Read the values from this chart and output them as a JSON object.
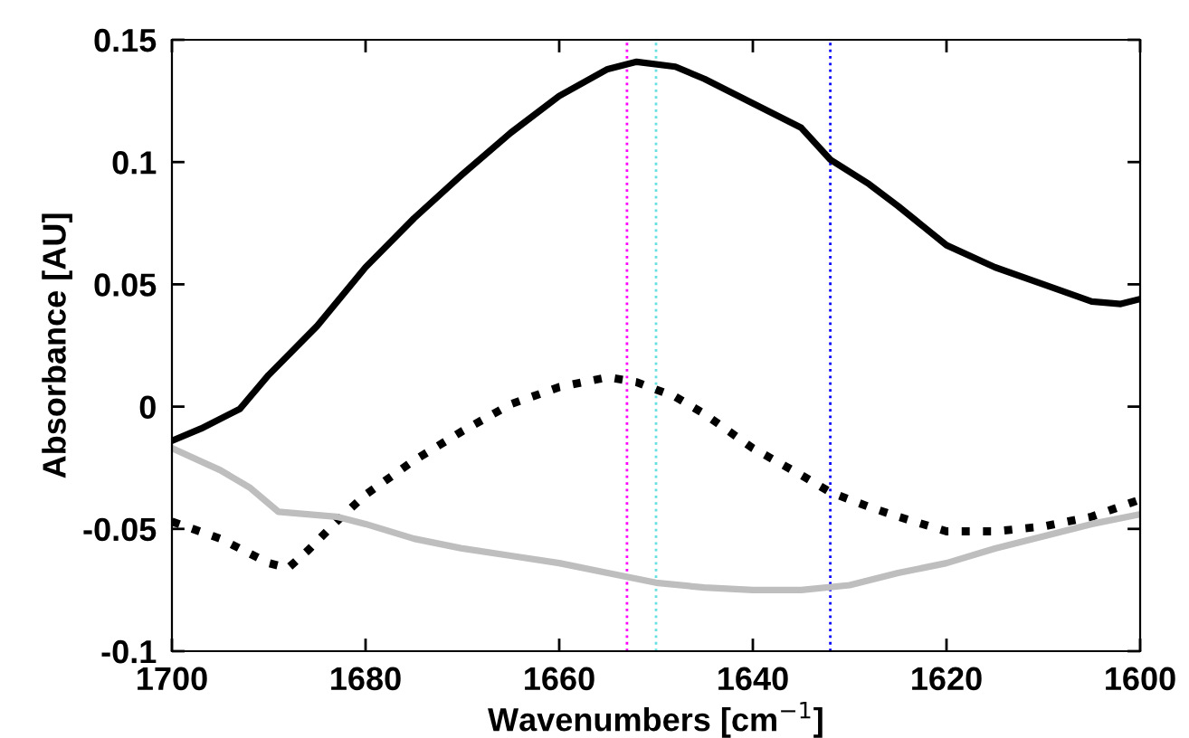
{
  "chart_data": {
    "type": "line",
    "xlabel": "Wavenumbers [cm$^{−1}$]",
    "ylabel": "Absorbance [AU]",
    "xlim": [
      1700,
      1600
    ],
    "xticks": [
      1700,
      1680,
      1660,
      1640,
      1620,
      1600
    ],
    "ylim": [
      -0.1,
      0.15
    ],
    "yticks": [
      -0.1,
      -0.05,
      0,
      0.05,
      0.1,
      0.15
    ],
    "grid": false,
    "marker": "none",
    "series": [
      {
        "color": "#000000",
        "line_style": "solid",
        "x": [
          1700,
          1697,
          1693,
          1690,
          1685,
          1680,
          1675,
          1670,
          1665,
          1660,
          1655,
          1652,
          1648,
          1645,
          1640,
          1635,
          1632,
          1628,
          1625,
          1620,
          1615,
          1610,
          1605,
          1602,
          1600
        ],
        "values": [
          -0.014,
          -0.009,
          -0.001,
          0.013,
          0.033,
          0.057,
          0.077,
          0.095,
          0.112,
          0.127,
          0.138,
          0.141,
          0.139,
          0.134,
          0.124,
          0.114,
          0.101,
          0.091,
          0.082,
          0.066,
          0.057,
          0.05,
          0.043,
          0.042,
          0.044
        ]
      },
      {
        "color": "#000000",
        "line_style": "dotted",
        "x": [
          1700,
          1695,
          1690,
          1688,
          1686,
          1683,
          1680,
          1675,
          1670,
          1665,
          1660,
          1655,
          1652,
          1648,
          1645,
          1640,
          1635,
          1632,
          1628,
          1625,
          1620,
          1615,
          1610,
          1605,
          1600
        ],
        "values": [
          -0.047,
          -0.054,
          -0.064,
          -0.066,
          -0.059,
          -0.047,
          -0.036,
          -0.022,
          -0.01,
          0.001,
          0.008,
          0.012,
          0.01,
          0.004,
          -0.003,
          -0.017,
          -0.028,
          -0.035,
          -0.041,
          -0.045,
          -0.051,
          -0.051,
          -0.049,
          -0.045,
          -0.038
        ]
      },
      {
        "color": "#bebebe",
        "line_style": "solid",
        "x": [
          1700,
          1695,
          1692,
          1689,
          1686,
          1683,
          1680,
          1675,
          1670,
          1665,
          1660,
          1655,
          1650,
          1645,
          1640,
          1635,
          1630,
          1625,
          1620,
          1615,
          1610,
          1605,
          1600
        ],
        "values": [
          -0.017,
          -0.026,
          -0.033,
          -0.043,
          -0.044,
          -0.045,
          -0.048,
          -0.054,
          -0.058,
          -0.061,
          -0.064,
          -0.068,
          -0.072,
          -0.074,
          -0.075,
          -0.075,
          -0.073,
          -0.068,
          -0.064,
          -0.058,
          -0.053,
          -0.048,
          -0.044
        ]
      }
    ],
    "ref_lines": [
      {
        "axis": "x",
        "value": 1653,
        "color": "#ff00ff",
        "line_style": "dotted"
      },
      {
        "axis": "x",
        "value": 1650,
        "color": "#66e0e0",
        "line_style": "dotted"
      },
      {
        "axis": "x",
        "value": 1632,
        "color": "#0000ff",
        "line_style": "dotted"
      }
    ]
  }
}
